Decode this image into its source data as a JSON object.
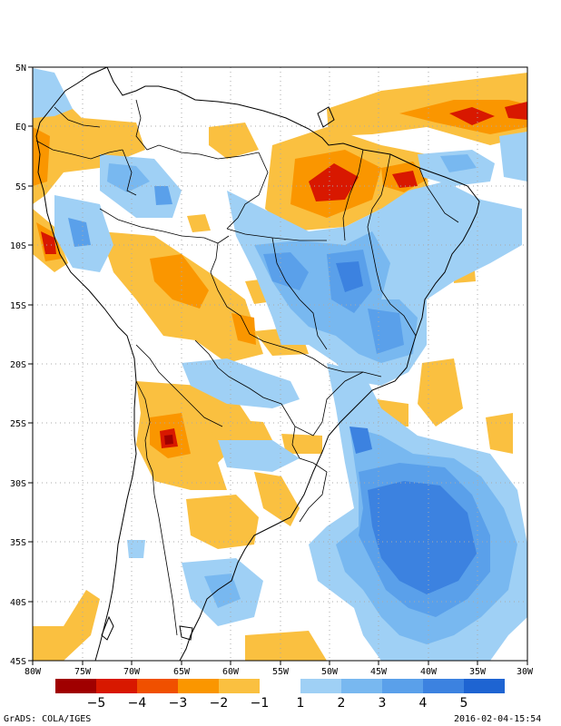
{
  "map": {
    "region": "South America",
    "longitude_labels": [
      "80W",
      "75W",
      "70W",
      "65W",
      "60W",
      "55W",
      "50W",
      "45W",
      "40W",
      "35W",
      "30W"
    ],
    "latitude_labels": [
      "5N",
      "EQ",
      "5S",
      "10S",
      "15S",
      "20S",
      "25S",
      "30S",
      "35S",
      "40S",
      "45S"
    ]
  },
  "colorbar": {
    "negative_colors": [
      "#a00000",
      "#d81800",
      "#f05000",
      "#fa9600",
      "#fac040"
    ],
    "negative_labels": [
      "−5",
      "−4",
      "−3",
      "−2",
      "−1"
    ],
    "positive_colors": [
      "#9fd0f5",
      "#78b8f0",
      "#5aa0ea",
      "#3c82e0",
      "#1e64d2"
    ],
    "positive_labels": [
      "1",
      "2",
      "3",
      "4",
      "5"
    ]
  },
  "footer": {
    "left": "GrADS: COLA/IGES",
    "right": "2016-02-04-15:54"
  }
}
